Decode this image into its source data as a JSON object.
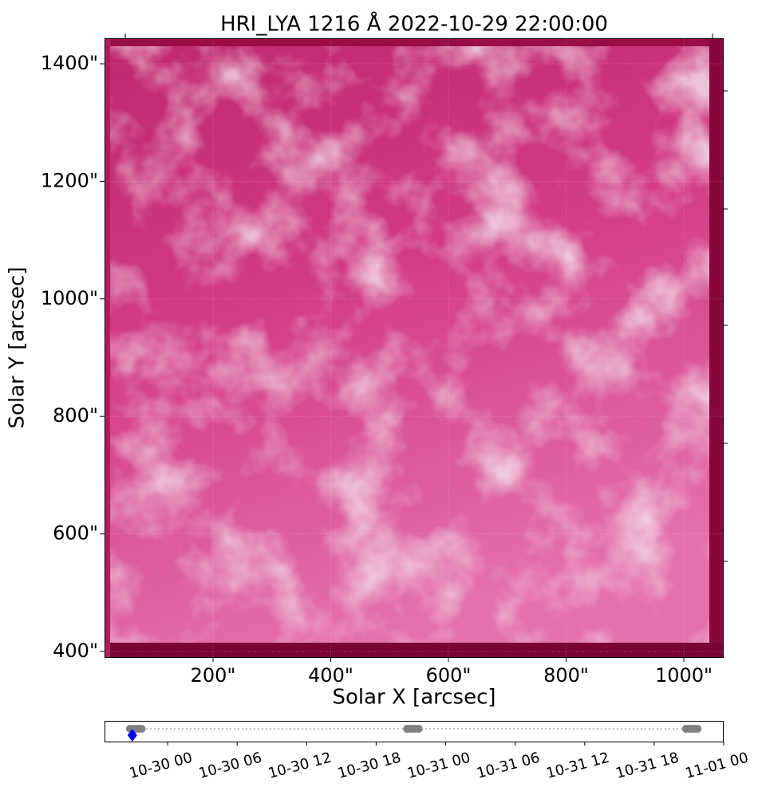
{
  "chart_data": [
    {
      "type": "image",
      "title": "HRI_LYA 1216 Å 2022-10-29 22:00:00",
      "xlabel": "Solar X [arcsec]",
      "ylabel": "Solar Y [arcsec]",
      "xlim": [
        15.6,
        1066.4
      ],
      "ylim": [
        390.5,
        1443.4
      ],
      "xticks": [
        {
          "value": 200,
          "label": "200\""
        },
        {
          "value": 400,
          "label": "400\""
        },
        {
          "value": 600,
          "label": "600\""
        },
        {
          "value": 800,
          "label": "800\""
        },
        {
          "value": 1000,
          "label": "1000\""
        }
      ],
      "yticks": [
        {
          "value": 400,
          "label": "400\""
        },
        {
          "value": 600,
          "label": "600\""
        },
        {
          "value": 800,
          "label": "800\""
        },
        {
          "value": 1000,
          "label": "1000\""
        },
        {
          "value": 1200,
          "label": "1200\""
        },
        {
          "value": 1400,
          "label": "1400\""
        }
      ]
    },
    {
      "type": "timeline",
      "xlim": [
        "10-29 18:33",
        "10-31 23:56"
      ],
      "xticks": [
        {
          "value": "10-30 00:00",
          "label": "10-30 00"
        },
        {
          "value": "10-30 06:00",
          "label": "10-30 06"
        },
        {
          "value": "10-30 12:00",
          "label": "10-30 12"
        },
        {
          "value": "10-30 18:00",
          "label": "10-30 18"
        },
        {
          "value": "10-31 00:00",
          "label": "10-31 00"
        },
        {
          "value": "10-31 06:00",
          "label": "10-31 06"
        },
        {
          "value": "10-31 12:00",
          "label": "10-31 12"
        },
        {
          "value": "10-31 18:00",
          "label": "10-31 18"
        },
        {
          "value": "11-01 00:00",
          "label": "11-01 00"
        }
      ],
      "series": [
        {
          "color": "#808080",
          "marker": "circle",
          "x": [
            "10-29 20:45",
            "10-29 21:00",
            "10-29 21:15",
            "10-29 21:30",
            "10-29 21:45",
            "10-30 20:40",
            "10-30 20:55",
            "10-30 21:10",
            "10-30 21:25",
            "10-30 21:40",
            "10-31 20:45",
            "10-31 21:00",
            "10-31 21:15",
            "10-31 21:30",
            "10-31 21:45"
          ]
        },
        {
          "color": "#0000ff",
          "marker": "diamond",
          "x": [
            "10-29 20:57"
          ]
        }
      ]
    }
  ]
}
